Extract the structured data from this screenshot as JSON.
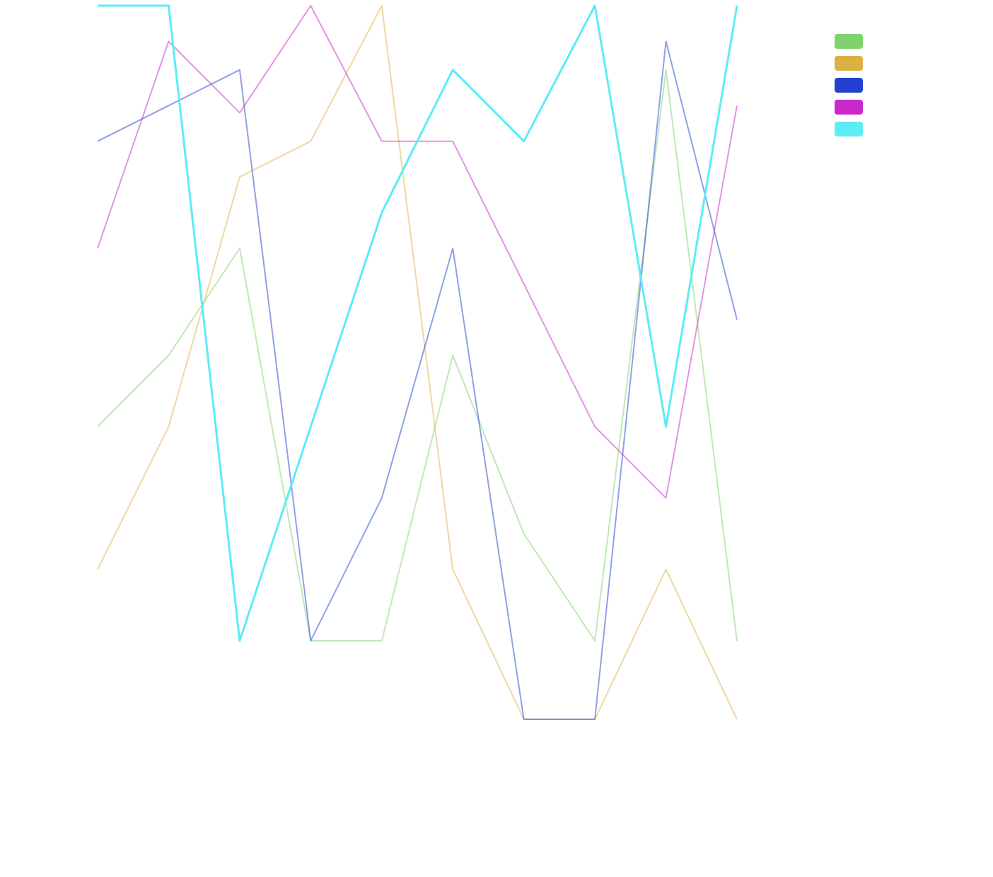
{
  "chart_data": {
    "type": "line",
    "title": "",
    "xlabel": "",
    "ylabel": "",
    "x": [
      1,
      2,
      3,
      4,
      5,
      6,
      7,
      8,
      9,
      10
    ],
    "ylim": [
      0,
      100
    ],
    "grid": false,
    "legend_position": "top-right",
    "series": [
      {
        "color": "#7ed36d",
        "values": [
          41,
          51,
          66,
          11,
          11,
          51,
          26,
          11,
          91,
          11
        ]
      },
      {
        "color": "#dcb143",
        "values": [
          21,
          41,
          76,
          81,
          100,
          21,
          0,
          0,
          21,
          0
        ]
      },
      {
        "color": "#2241d1",
        "values": [
          81,
          86,
          91,
          11,
          31,
          66,
          0,
          0,
          95,
          56
        ]
      },
      {
        "color": "#c928cc",
        "values": [
          66,
          95,
          85,
          100,
          81,
          81,
          61,
          41,
          31,
          86
        ]
      },
      {
        "color": "#5cecf6",
        "values": [
          100,
          100,
          11,
          41,
          71,
          91,
          81,
          100,
          41,
          100
        ]
      }
    ]
  }
}
